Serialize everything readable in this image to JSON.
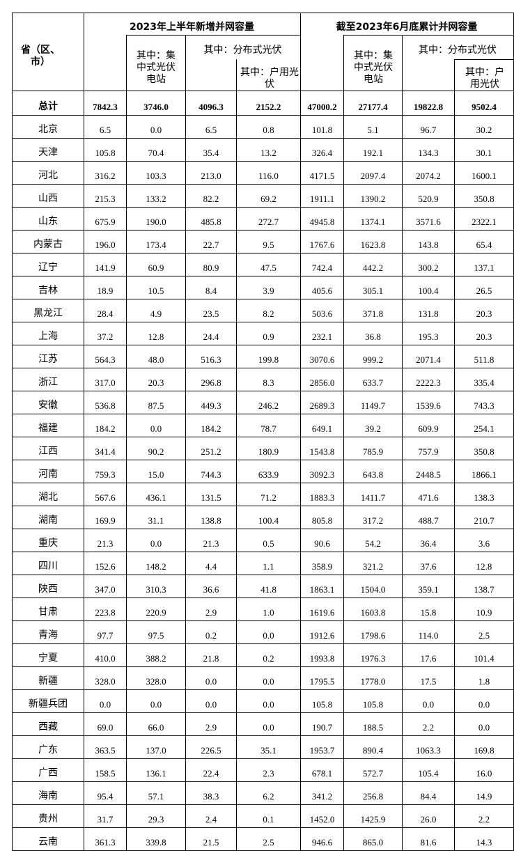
{
  "header": {
    "region": "省（区、市）",
    "group1_title": "2023年上半年新增并网容量",
    "group2_title": "截至2023年6月底累计并网容量",
    "centralized": "其中：集中式光伏电站",
    "distributed": "其中：分布式光伏",
    "household": "其中：户用光伏"
  },
  "total": {
    "name": "总计",
    "values": [
      "7842.3",
      "3746.0",
      "4096.3",
      "2152.2",
      "47000.2",
      "27177.4",
      "19822.8",
      "9502.4"
    ]
  },
  "rows": [
    {
      "name": "北京",
      "values": [
        "6.5",
        "0.0",
        "6.5",
        "0.8",
        "101.8",
        "5.1",
        "96.7",
        "30.2"
      ]
    },
    {
      "name": "天津",
      "values": [
        "105.8",
        "70.4",
        "35.4",
        "13.2",
        "326.4",
        "192.1",
        "134.3",
        "30.1"
      ]
    },
    {
      "name": "河北",
      "values": [
        "316.2",
        "103.3",
        "213.0",
        "116.0",
        "4171.5",
        "2097.4",
        "2074.2",
        "1600.1"
      ]
    },
    {
      "name": "山西",
      "values": [
        "215.3",
        "133.2",
        "82.2",
        "69.2",
        "1911.1",
        "1390.2",
        "520.9",
        "350.8"
      ]
    },
    {
      "name": "山东",
      "values": [
        "675.9",
        "190.0",
        "485.8",
        "272.7",
        "4945.8",
        "1374.1",
        "3571.6",
        "2322.1"
      ]
    },
    {
      "name": "内蒙古",
      "values": [
        "196.0",
        "173.4",
        "22.7",
        "9.5",
        "1767.6",
        "1623.8",
        "143.8",
        "65.4"
      ]
    },
    {
      "name": "辽宁",
      "values": [
        "141.9",
        "60.9",
        "80.9",
        "47.5",
        "742.4",
        "442.2",
        "300.2",
        "137.1"
      ]
    },
    {
      "name": "吉林",
      "values": [
        "18.9",
        "10.5",
        "8.4",
        "3.9",
        "405.6",
        "305.1",
        "100.4",
        "26.5"
      ]
    },
    {
      "name": "黑龙江",
      "values": [
        "28.4",
        "4.9",
        "23.5",
        "8.2",
        "503.6",
        "371.8",
        "131.8",
        "20.3"
      ]
    },
    {
      "name": "上海",
      "values": [
        "37.2",
        "12.8",
        "24.4",
        "0.9",
        "232.1",
        "36.8",
        "195.3",
        "20.3"
      ]
    },
    {
      "name": "江苏",
      "values": [
        "564.3",
        "48.0",
        "516.3",
        "199.8",
        "3070.6",
        "999.2",
        "2071.4",
        "511.8"
      ]
    },
    {
      "name": "浙江",
      "values": [
        "317.0",
        "20.3",
        "296.8",
        "8.3",
        "2856.0",
        "633.7",
        "2222.3",
        "335.4"
      ]
    },
    {
      "name": "安徽",
      "values": [
        "536.8",
        "87.5",
        "449.3",
        "246.2",
        "2689.3",
        "1149.7",
        "1539.6",
        "743.3"
      ]
    },
    {
      "name": "福建",
      "values": [
        "184.2",
        "0.0",
        "184.2",
        "78.7",
        "649.1",
        "39.2",
        "609.9",
        "254.1"
      ]
    },
    {
      "name": "江西",
      "values": [
        "341.4",
        "90.2",
        "251.2",
        "180.9",
        "1543.8",
        "785.9",
        "757.9",
        "350.8"
      ]
    },
    {
      "name": "河南",
      "values": [
        "759.3",
        "15.0",
        "744.3",
        "633.9",
        "3092.3",
        "643.8",
        "2448.5",
        "1866.1"
      ]
    },
    {
      "name": "湖北",
      "values": [
        "567.6",
        "436.1",
        "131.5",
        "71.2",
        "1883.3",
        "1411.7",
        "471.6",
        "138.3"
      ]
    },
    {
      "name": "湖南",
      "values": [
        "169.9",
        "31.1",
        "138.8",
        "100.4",
        "805.8",
        "317.2",
        "488.7",
        "210.7"
      ]
    },
    {
      "name": "重庆",
      "values": [
        "21.3",
        "0.0",
        "21.3",
        "0.5",
        "90.6",
        "54.2",
        "36.4",
        "3.6"
      ]
    },
    {
      "name": "四川",
      "values": [
        "152.6",
        "148.2",
        "4.4",
        "1.1",
        "358.9",
        "321.2",
        "37.6",
        "12.8"
      ]
    },
    {
      "name": "陕西",
      "values": [
        "347.0",
        "310.3",
        "36.6",
        "41.8",
        "1863.1",
        "1504.0",
        "359.1",
        "138.7"
      ]
    },
    {
      "name": "甘肃",
      "values": [
        "223.8",
        "220.9",
        "2.9",
        "1.0",
        "1619.6",
        "1603.8",
        "15.8",
        "10.9"
      ]
    },
    {
      "name": "青海",
      "values": [
        "97.7",
        "97.5",
        "0.2",
        "0.0",
        "1912.6",
        "1798.6",
        "114.0",
        "2.5"
      ]
    },
    {
      "name": "宁夏",
      "values": [
        "410.0",
        "388.2",
        "21.8",
        "0.2",
        "1993.8",
        "1976.3",
        "17.6",
        "101.4"
      ]
    },
    {
      "name": "新疆",
      "values": [
        "328.0",
        "328.0",
        "0.0",
        "0.0",
        "1795.5",
        "1778.0",
        "17.5",
        "1.8"
      ]
    },
    {
      "name": "新疆兵团",
      "values": [
        "0.0",
        "0.0",
        "0.0",
        "0.0",
        "105.8",
        "105.8",
        "0.0",
        "0.0"
      ]
    },
    {
      "name": "西藏",
      "values": [
        "69.0",
        "66.0",
        "2.9",
        "0.0",
        "190.7",
        "188.5",
        "2.2",
        "0.0"
      ]
    },
    {
      "name": "广东",
      "values": [
        "363.5",
        "137.0",
        "226.5",
        "35.1",
        "1953.7",
        "890.4",
        "1063.3",
        "169.8"
      ]
    },
    {
      "name": "广西",
      "values": [
        "158.5",
        "136.1",
        "22.4",
        "2.3",
        "678.1",
        "572.7",
        "105.4",
        "16.0"
      ]
    },
    {
      "name": "海南",
      "values": [
        "95.4",
        "57.1",
        "38.3",
        "6.2",
        "341.2",
        "256.8",
        "84.4",
        "14.9"
      ]
    },
    {
      "name": "贵州",
      "values": [
        "31.7",
        "29.3",
        "2.4",
        "0.1",
        "1452.0",
        "1425.9",
        "26.0",
        "2.2"
      ]
    },
    {
      "name": "云南",
      "values": [
        "361.3",
        "339.8",
        "21.5",
        "2.5",
        "946.6",
        "865.0",
        "81.6",
        "14.3"
      ]
    }
  ]
}
